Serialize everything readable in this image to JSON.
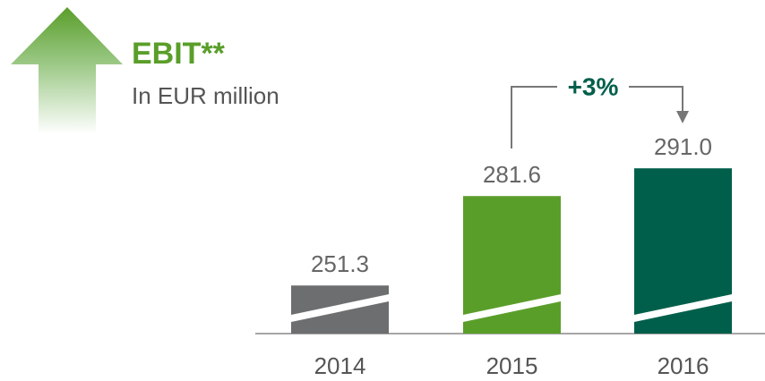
{
  "chart_data": {
    "type": "bar",
    "title": "EBIT**",
    "subtitle": "In EUR million",
    "annotation": "+3%",
    "categories": [
      "2014",
      "2015",
      "2016"
    ],
    "values": [
      251.3,
      281.6,
      291.0
    ],
    "value_labels": [
      "251.3",
      "281.6",
      "291.0"
    ],
    "colors": [
      "#6d6e70",
      "#5a9e2a",
      "#005f4b"
    ],
    "ylim": [
      235,
      300
    ]
  }
}
